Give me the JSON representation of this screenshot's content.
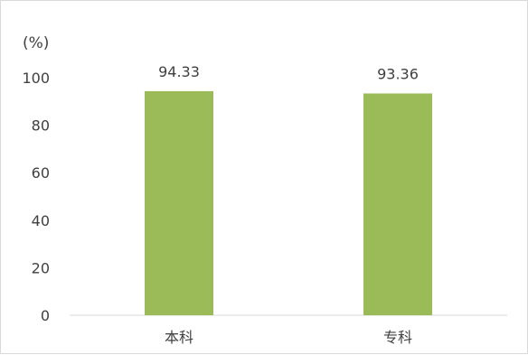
{
  "chart_data": {
    "type": "bar",
    "title": "",
    "ylabel": "(%)",
    "xlabel": "",
    "categories": [
      "本科",
      "专科"
    ],
    "values": [
      94.33,
      93.36
    ],
    "data_labels": [
      "94.33",
      "93.36"
    ],
    "ylim": [
      0,
      100
    ],
    "yticks": [
      0,
      20,
      40,
      60,
      80,
      100
    ],
    "ytick_labels": [
      "0",
      "20",
      "40",
      "60",
      "80",
      "100"
    ],
    "grid": false,
    "legend": "none",
    "colors": {
      "bar": "#9BBB59",
      "axis": "#D9D9D9",
      "text": "#404040"
    }
  }
}
